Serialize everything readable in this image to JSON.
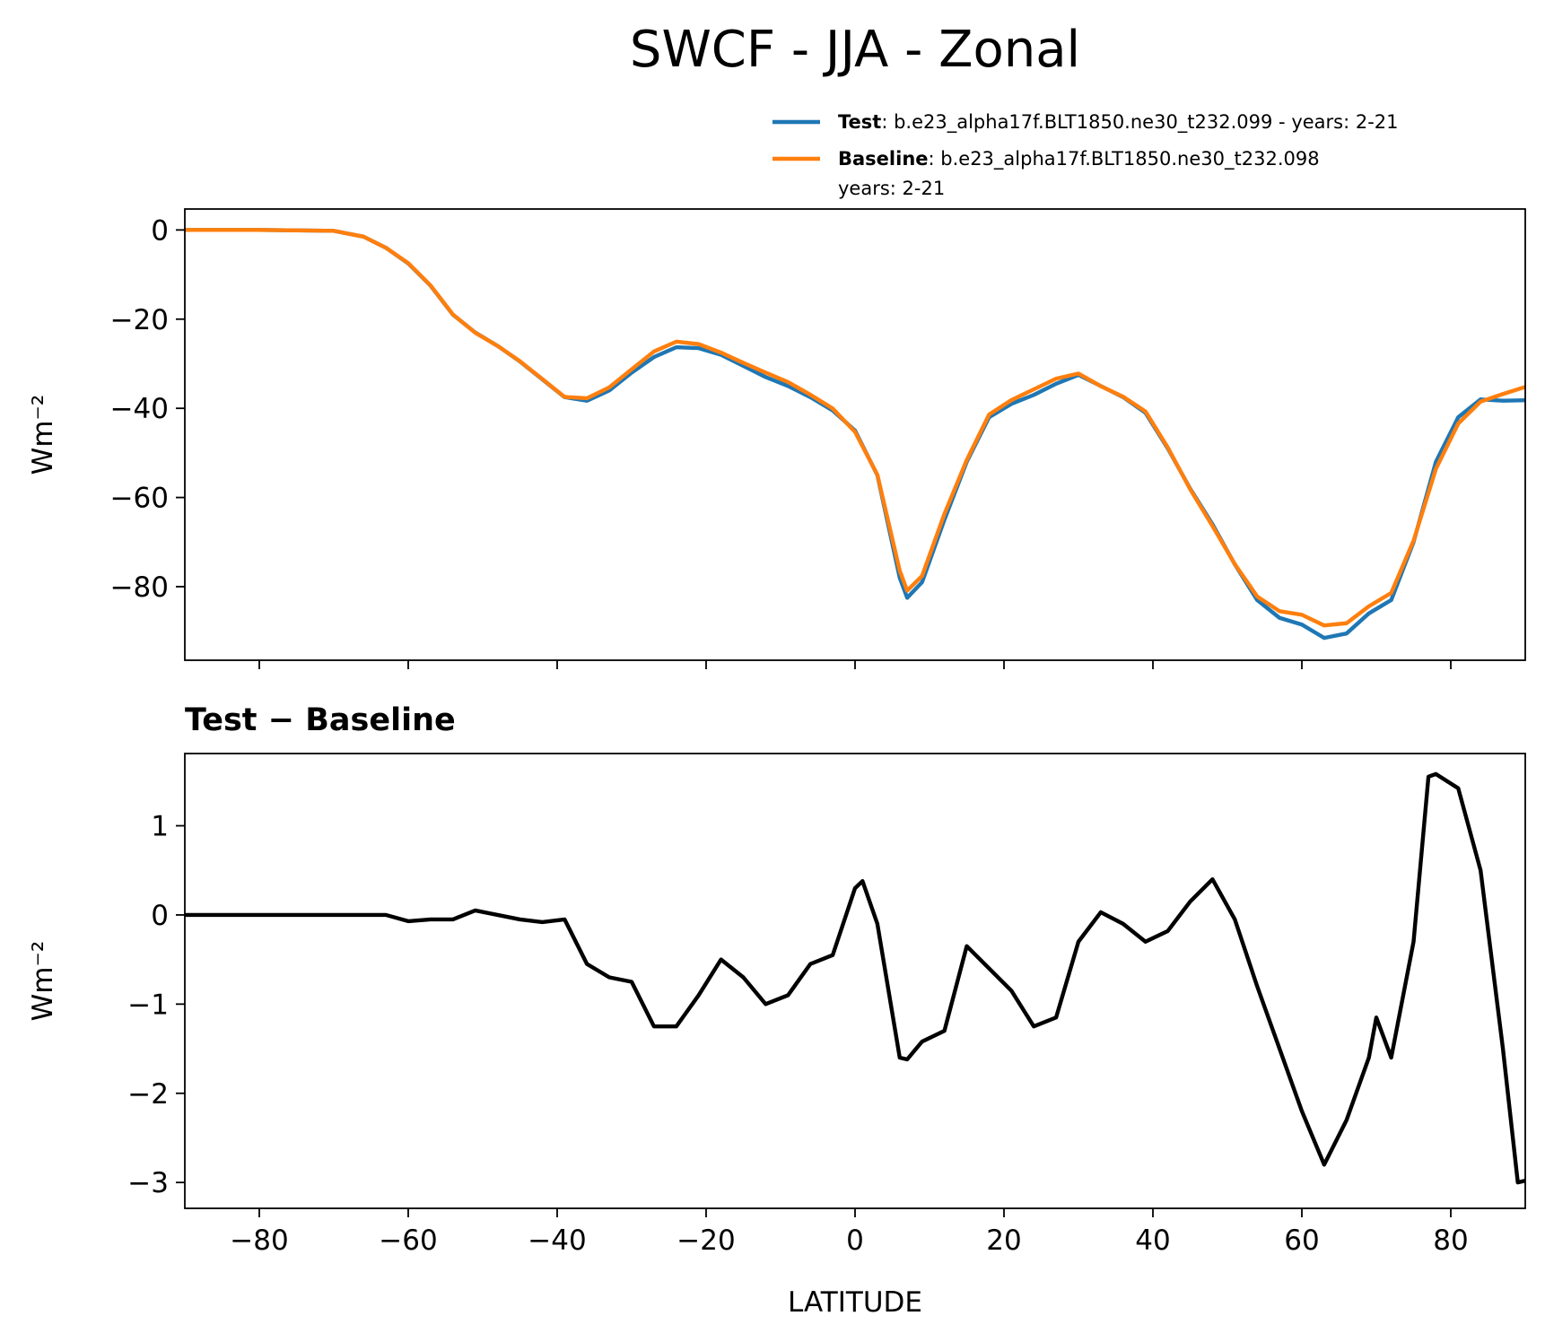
{
  "chart_data": [
    {
      "type": "line",
      "title": "SWCF - JJA - Zonal",
      "ylabel": "Wm⁻²",
      "x": [
        -90,
        -85,
        -80,
        -75,
        -70,
        -66,
        -63,
        -60,
        -57,
        -54,
        -51,
        -48,
        -45,
        -42,
        -39,
        -36,
        -33,
        -30,
        -27,
        -24,
        -21,
        -18,
        -15,
        -12,
        -9,
        -6,
        -3,
        0,
        3,
        6,
        7,
        9,
        12,
        15,
        18,
        21,
        24,
        27,
        30,
        33,
        36,
        39,
        42,
        45,
        48,
        51,
        54,
        57,
        60,
        63,
        66,
        69,
        72,
        75,
        78,
        81,
        84,
        87,
        90
      ],
      "series": [
        {
          "name": "Test",
          "detail": [
            ": b.e23_alpha17f.BLT1850.ne30_t232.099 - years: 2-21"
          ],
          "color": "#1f77b4",
          "values": [
            0,
            0,
            0,
            -0.1,
            -0.2,
            -1.5,
            -4,
            -7.5,
            -12.5,
            -19,
            -23,
            -26,
            -29.5,
            -33.5,
            -37.5,
            -38.3,
            -36,
            -32,
            -28.5,
            -26.3,
            -26.5,
            -28,
            -30.5,
            -33,
            -35,
            -37.5,
            -40.5,
            -45,
            -55,
            -78,
            -82.5,
            -79,
            -65,
            -52,
            -42,
            -39,
            -37,
            -34.5,
            -32.5,
            -35,
            -37.5,
            -41,
            -49,
            -58,
            -66,
            -75,
            -83,
            -87,
            -88.5,
            -91.5,
            -90.5,
            -86,
            -83,
            -70,
            -52,
            -42,
            -38,
            -38.3,
            -38.2
          ]
        },
        {
          "name": "Baseline",
          "detail": [
            ": b.e23_alpha17f.BLT1850.ne30_t232.098",
            "years: 2-21"
          ],
          "color": "#ff7f0e",
          "values": [
            0,
            0,
            0,
            -0.1,
            -0.2,
            -1.5,
            -4,
            -7.43,
            -12.45,
            -18.95,
            -23.05,
            -26,
            -29.45,
            -33.42,
            -37.45,
            -37.75,
            -35.3,
            -31.25,
            -27.25,
            -25.05,
            -25.6,
            -27.5,
            -29.8,
            -32,
            -34.1,
            -36.95,
            -40.05,
            -45.3,
            -54.9,
            -76.4,
            -80.9,
            -77.6,
            -63.7,
            -51.6,
            -41.4,
            -38.15,
            -35.75,
            -33.35,
            -32.2,
            -35.03,
            -37.4,
            -40.7,
            -48.8,
            -58.15,
            -66.4,
            -74.95,
            -82.2,
            -85.5,
            -86.3,
            -88.7,
            -88.2,
            -84.4,
            -81.4,
            -69.7,
            -53.58,
            -43.42,
            -38.5,
            -36.8,
            -35.2
          ]
        }
      ],
      "xlim": [
        -90,
        90
      ],
      "ylim": [
        -96.5,
        4.7
      ],
      "xticks": [
        -80,
        -60,
        -40,
        -20,
        0,
        20,
        40,
        60,
        80
      ],
      "yticks": [
        0,
        {
          "value": -20,
          "label": "−20"
        },
        {
          "value": -40,
          "label": "−40"
        },
        {
          "value": -60,
          "label": "−60"
        },
        {
          "value": -80,
          "label": "−80"
        }
      ]
    },
    {
      "type": "line",
      "title": "Test − Baseline",
      "ylabel": "Wm⁻²",
      "xlabel": "LATITUDE",
      "x": [
        -90,
        -80,
        -70,
        -66,
        -63,
        -60,
        -57,
        -54,
        -51,
        -48,
        -45,
        -42,
        -39,
        -36,
        -33,
        -30,
        -27,
        -24,
        -21,
        -18,
        -15,
        -12,
        -9,
        -6,
        -3,
        0,
        1,
        3,
        6,
        7,
        9,
        12,
        15,
        18,
        21,
        24,
        27,
        30,
        33,
        36,
        39,
        42,
        45,
        48,
        51,
        54,
        57,
        60,
        63,
        66,
        69,
        70,
        72,
        75,
        77,
        78,
        81,
        84,
        87,
        89,
        90
      ],
      "series": [
        {
          "color": "#000000",
          "values": [
            0,
            0,
            0,
            0,
            0,
            -0.07,
            -0.05,
            -0.05,
            0.05,
            0,
            -0.05,
            -0.08,
            -0.05,
            -0.55,
            -0.7,
            -0.75,
            -1.25,
            -1.25,
            -0.9,
            -0.5,
            -0.7,
            -1.0,
            -0.9,
            -0.55,
            -0.45,
            0.3,
            0.38,
            -0.1,
            -1.6,
            -1.62,
            -1.42,
            -1.3,
            -0.35,
            -0.6,
            -0.85,
            -1.25,
            -1.15,
            -0.3,
            0.03,
            -0.1,
            -0.3,
            -0.18,
            0.15,
            0.4,
            -0.05,
            -0.8,
            -1.5,
            -2.2,
            -2.8,
            -2.3,
            -1.6,
            -1.15,
            -1.6,
            -0.3,
            1.55,
            1.58,
            1.42,
            0.5,
            -1.5,
            -3.0,
            -2.98
          ]
        }
      ],
      "xlim": [
        -90,
        90
      ],
      "ylim": [
        -3.29,
        1.81
      ],
      "xticks": [
        {
          "value": -80,
          "label": "−80"
        },
        {
          "value": -60,
          "label": "−60"
        },
        {
          "value": -40,
          "label": "−40"
        },
        {
          "value": -20,
          "label": "−20"
        },
        0,
        20,
        40,
        60,
        80
      ],
      "yticks": [
        1,
        0,
        {
          "value": -1,
          "label": "−1"
        },
        {
          "value": -2,
          "label": "−2"
        },
        {
          "value": -3,
          "label": "−3"
        }
      ]
    }
  ]
}
